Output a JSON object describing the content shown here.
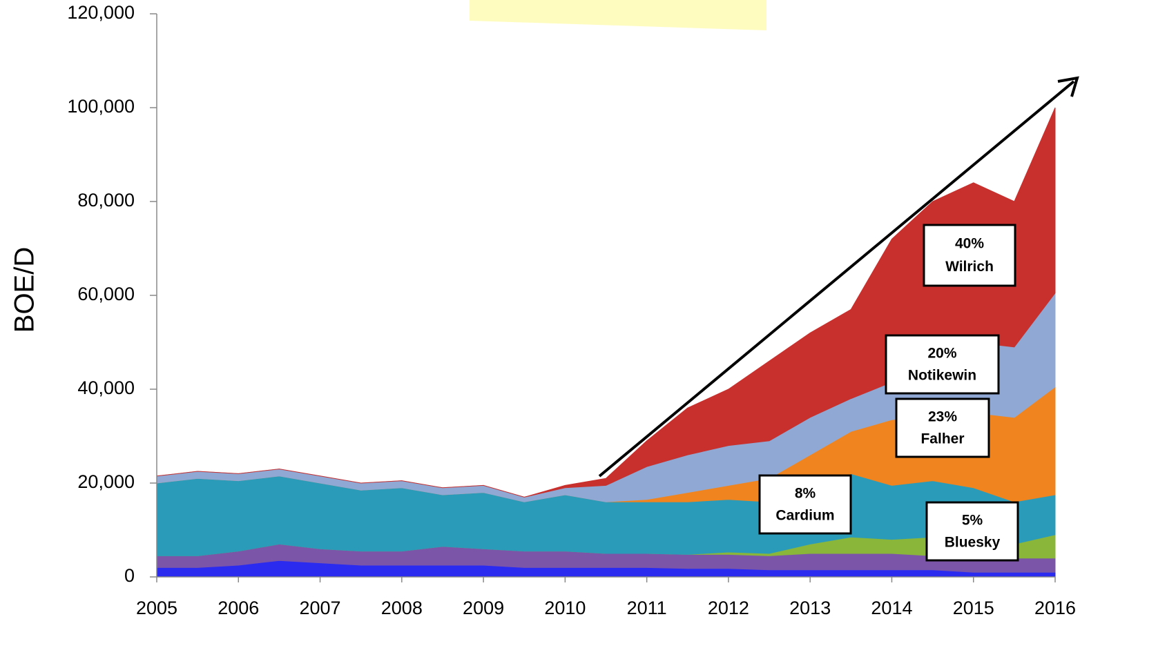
{
  "chart_data": {
    "type": "stacked_area",
    "y_axis_label": "BOE/D",
    "x": [
      2005,
      2005.5,
      2006,
      2006.5,
      2007,
      2007.5,
      2008,
      2008.5,
      2009,
      2009.5,
      2010,
      2010.5,
      2011,
      2011.5,
      2012,
      2012.5,
      2013,
      2013.5,
      2014,
      2014.5,
      2015,
      2015.5,
      2016
    ],
    "xlim": [
      2005,
      2016
    ],
    "xticks": [
      2005,
      2006,
      2007,
      2008,
      2009,
      2010,
      2011,
      2012,
      2013,
      2014,
      2015,
      2016
    ],
    "ylim": [
      0,
      120000
    ],
    "yticks": [
      0,
      {
        "value": 20000,
        "label": "20,000"
      },
      {
        "value": 40000,
        "label": "40,000"
      },
      {
        "value": 60000,
        "label": "60,000"
      },
      {
        "value": 80000,
        "label": "80,000"
      },
      {
        "value": 100000,
        "label": "100,000"
      },
      {
        "value": 120000,
        "label": "120,000"
      }
    ],
    "series": [
      {
        "color": "#2b2bf0",
        "values": [
          2000,
          2000,
          2500,
          3500,
          3000,
          2500,
          2500,
          2500,
          2500,
          2000,
          2000,
          2000,
          2000,
          1800,
          1800,
          1500,
          1500,
          1500,
          1500,
          1500,
          1000,
          1000,
          1000
        ]
      },
      {
        "color": "#7b56a8",
        "values": [
          2500,
          2500,
          3000,
          3500,
          3000,
          3000,
          3000,
          4000,
          3500,
          3500,
          3500,
          3000,
          3000,
          3000,
          3000,
          3000,
          3500,
          3500,
          3500,
          3000,
          3000,
          3000,
          3000
        ]
      },
      {
        "color": "#8ab63a",
        "values": [
          0,
          0,
          0,
          0,
          0,
          0,
          0,
          0,
          0,
          0,
          0,
          0,
          0,
          0,
          500,
          500,
          2000,
          3500,
          3000,
          4000,
          3000,
          3000,
          5000
        ]
      },
      {
        "color": "#2a9bb8",
        "values": [
          15500,
          16500,
          15000,
          14500,
          14000,
          13000,
          13500,
          11000,
          12000,
          10500,
          12000,
          11000,
          11000,
          11200,
          11200,
          11000,
          11000,
          13500,
          11500,
          12000,
          12000,
          9000,
          8500
        ]
      },
      {
        "color": "#f0841e",
        "values": [
          0,
          0,
          0,
          0,
          0,
          0,
          0,
          0,
          0,
          0,
          0,
          0,
          500,
          2000,
          3000,
          5000,
          8000,
          9000,
          14000,
          14000,
          16000,
          18000,
          23000
        ]
      },
      {
        "color": "#8fa9d4",
        "values": [
          1500,
          1500,
          1500,
          1500,
          1500,
          1500,
          1500,
          1500,
          1500,
          1000,
          1500,
          3500,
          7000,
          8000,
          8500,
          8000,
          8000,
          7000,
          8000,
          11000,
          15000,
          15000,
          20000
        ]
      },
      {
        "color": "#c8302e",
        "values": [
          0,
          0,
          0,
          0,
          0,
          0,
          0,
          0,
          0,
          0,
          500,
          1500,
          5500,
          10000,
          12000,
          17000,
          18000,
          19000,
          30500,
          34500,
          34000,
          31000,
          39500
        ]
      }
    ],
    "annotations": [
      {
        "pct": "40%",
        "name": "Wilrich"
      },
      {
        "pct": "20%",
        "name": "Notikewin"
      },
      {
        "pct": "23%",
        "name": "Falher"
      },
      {
        "pct": "8%",
        "name": "Cardium"
      },
      {
        "pct": "5%",
        "name": "Bluesky"
      }
    ]
  }
}
